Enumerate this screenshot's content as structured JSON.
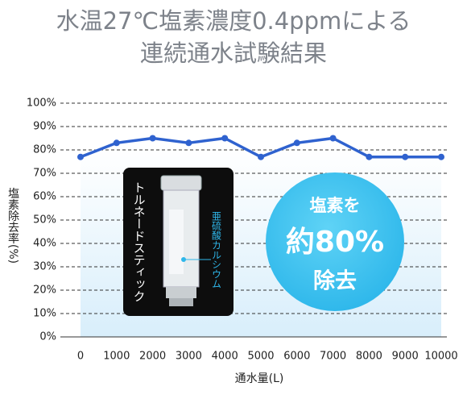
{
  "chart_data": {
    "type": "line",
    "title": [
      "水温27℃塩素濃度0.4ppmによる",
      "連続通水試験結果"
    ],
    "y_label": "塩素除去率(%)",
    "x_label": "通水量(L)",
    "categories": [
      "0",
      "1000",
      "2000",
      "3000",
      "4000",
      "5000",
      "6000",
      "7000",
      "8000",
      "9000",
      "10000"
    ],
    "values": [
      77,
      83,
      85,
      83,
      85,
      77,
      83,
      85,
      77,
      77,
      77
    ],
    "color": "#2f62cf",
    "ylim": [
      0,
      100
    ],
    "yticks": [
      {
        "value": 0,
        "label": "0%"
      },
      {
        "value": 10,
        "label": "10%"
      },
      {
        "value": 20,
        "label": "20%"
      },
      {
        "value": 30,
        "label": "30%"
      },
      {
        "value": 40,
        "label": "40%"
      },
      {
        "value": 50,
        "label": "50%"
      },
      {
        "value": 60,
        "label": "60%"
      },
      {
        "value": 70,
        "label": "70%"
      },
      {
        "value": 80,
        "label": "80%"
      },
      {
        "value": 90,
        "label": "90%"
      },
      {
        "value": 100,
        "label": "100%"
      }
    ],
    "grid": true,
    "annotations": {
      "product_name": "トルネードスティック",
      "ingredient": "亜硫酸カルシウム",
      "badge": [
        "塩素を",
        "約80%",
        "除去"
      ]
    }
  }
}
